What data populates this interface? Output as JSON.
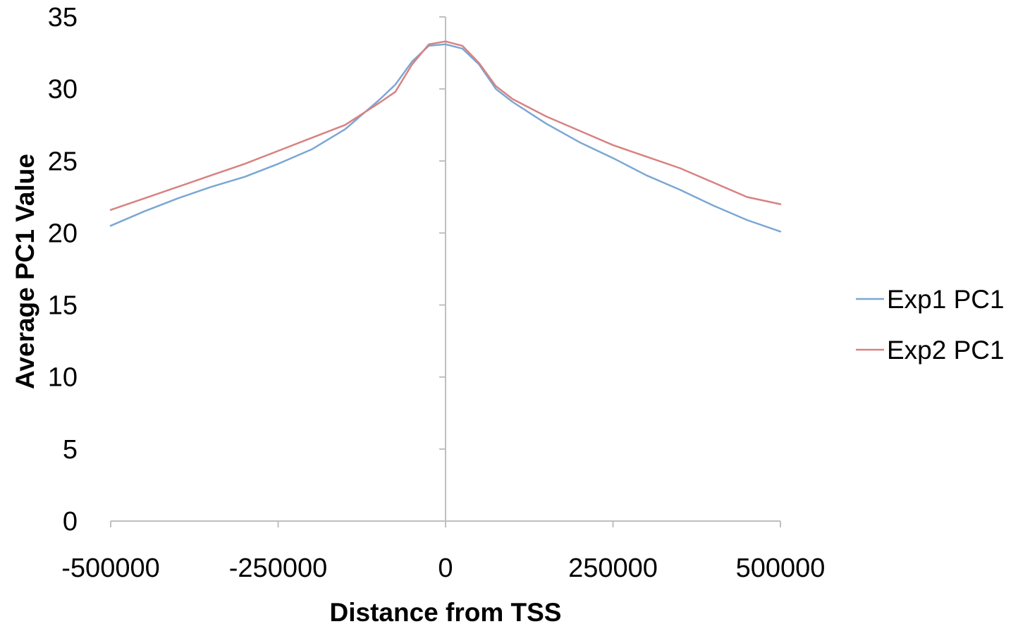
{
  "chart_data": {
    "type": "line",
    "title": "",
    "xlabel": "Distance from TSS",
    "ylabel": "Average PC1 Value",
    "xlim": [
      -500000,
      500000
    ],
    "ylim": [
      0,
      35
    ],
    "x_ticks": [
      -500000,
      -250000,
      0,
      250000,
      500000
    ],
    "x_tick_labels": [
      "-500000",
      "-250000",
      "0",
      "250000",
      "500000"
    ],
    "y_ticks": [
      0,
      5,
      10,
      15,
      20,
      25,
      30,
      35
    ],
    "y_tick_labels": [
      "0",
      "5",
      "10",
      "15",
      "20",
      "25",
      "30",
      "35"
    ],
    "grid": false,
    "legend_position": "right",
    "x": [
      -500000,
      -450000,
      -400000,
      -350000,
      -300000,
      -250000,
      -200000,
      -150000,
      -100000,
      -75000,
      -50000,
      -25000,
      0,
      25000,
      50000,
      75000,
      100000,
      150000,
      200000,
      250000,
      300000,
      350000,
      400000,
      450000,
      500000
    ],
    "series": [
      {
        "name": "Exp1 PC1",
        "color": "#7ba7d4",
        "values": [
          20.5,
          21.5,
          22.4,
          23.2,
          23.9,
          24.8,
          25.8,
          27.2,
          29.2,
          30.3,
          31.9,
          33.0,
          33.1,
          32.8,
          31.7,
          30.0,
          29.1,
          27.6,
          26.3,
          25.2,
          24.0,
          23.0,
          21.9,
          20.9,
          20.1
        ]
      },
      {
        "name": "Exp2 PC1",
        "color": "#d88282",
        "values": [
          21.6,
          22.4,
          23.2,
          24.0,
          24.8,
          25.7,
          26.6,
          27.5,
          29.0,
          29.8,
          31.7,
          33.1,
          33.3,
          33.0,
          31.8,
          30.2,
          29.3,
          28.1,
          27.1,
          26.1,
          25.3,
          24.5,
          23.5,
          22.5,
          22.0
        ]
      }
    ]
  }
}
